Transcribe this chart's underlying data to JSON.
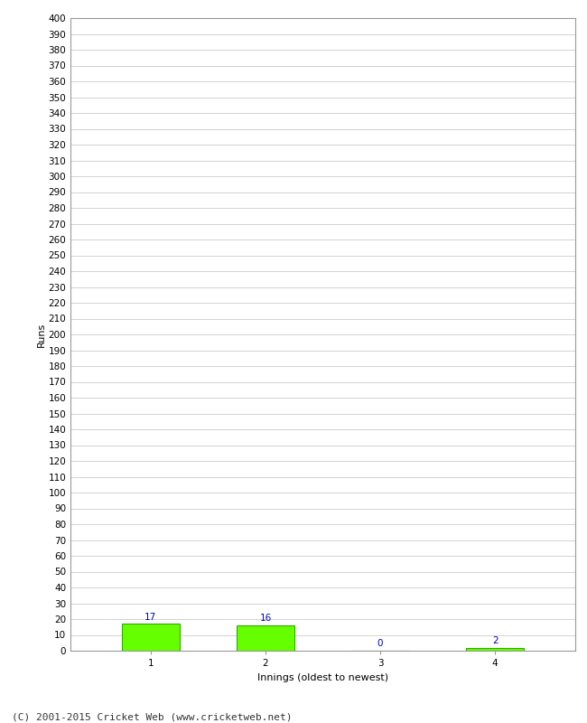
{
  "categories": [
    "1",
    "2",
    "3",
    "4"
  ],
  "values": [
    17,
    16,
    0,
    2
  ],
  "bar_color": "#66ff00",
  "bar_edge_color": "#33aa00",
  "xlabel": "Innings (oldest to newest)",
  "ylabel": "Runs",
  "ylim": [
    0,
    400
  ],
  "ytick_step": 10,
  "background_color": "#ffffff",
  "grid_color": "#cccccc",
  "label_color": "#0000cc",
  "label_fontsize": 7.5,
  "tick_fontsize": 7.5,
  "axis_label_fontsize": 8,
  "footer": "(C) 2001-2015 Cricket Web (www.cricketweb.net)",
  "footer_fontsize": 8
}
